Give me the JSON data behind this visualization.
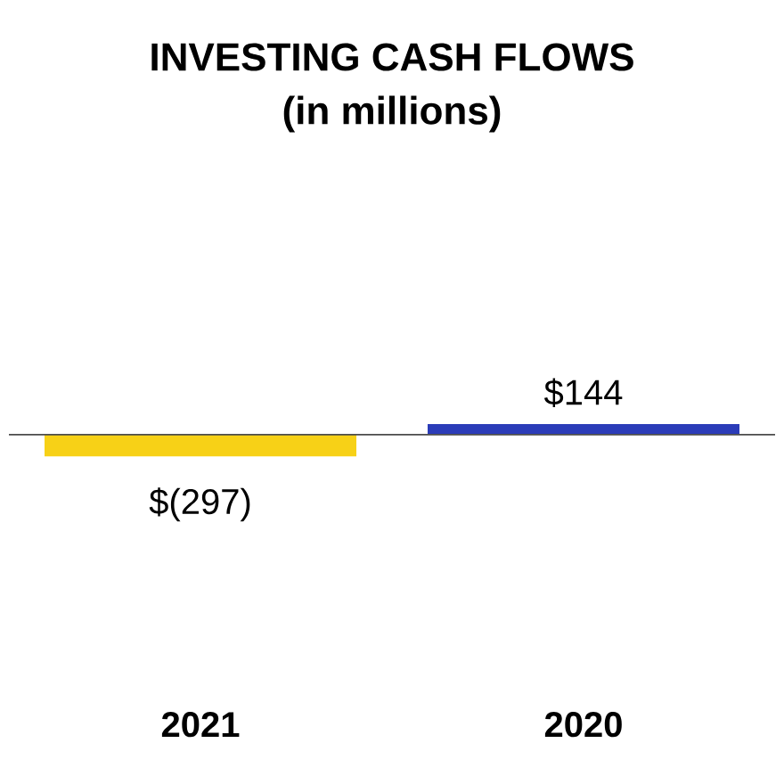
{
  "chart_data": {
    "type": "bar",
    "title": "INVESTING CASH FLOWS",
    "subtitle": "(in millions)",
    "categories": [
      "2021",
      "2020"
    ],
    "values": [
      -297,
      144
    ],
    "colors": [
      "#f7d117",
      "#2b3cb8"
    ],
    "value_labels": [
      "$(297)",
      "$144"
    ]
  }
}
